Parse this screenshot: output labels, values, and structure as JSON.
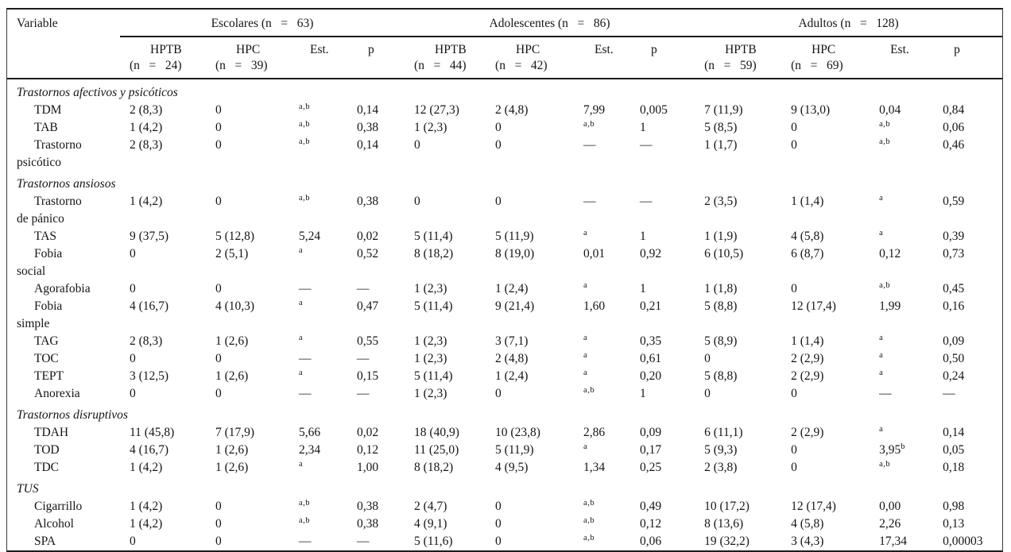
{
  "table": {
    "header": {
      "variable_label": "Variable",
      "groups": [
        {
          "label": "Escolares (n   =   63)",
          "sub": [
            {
              "name": "HPTB",
              "n": "(n   =   24)"
            },
            {
              "name": "HPC",
              "n": "(n   =   39)"
            },
            {
              "name": "Est."
            },
            {
              "name": "p"
            }
          ]
        },
        {
          "label": "Adolescentes (n   =   86)",
          "sub": [
            {
              "name": "HPTB",
              "n": "(n   =   44)"
            },
            {
              "name": "HPC",
              "n": "(n   =   42)"
            },
            {
              "name": "Est."
            },
            {
              "name": "p"
            }
          ]
        },
        {
          "label": "Adultos (n   =   128)",
          "sub": [
            {
              "name": "HPTB",
              "n": "(n   =   59)"
            },
            {
              "name": "HPC",
              "n": "(n   =   69)"
            },
            {
              "name": "Est."
            },
            {
              "name": "p"
            }
          ]
        }
      ]
    },
    "sections": [
      {
        "title": "Trastornos afectivos y psicóticos",
        "rows": [
          {
            "label": "TDM",
            "cells": [
              "2 (8,3)",
              "0",
              {
                "sup": "a,b"
              },
              "0,14",
              "12 (27,3)",
              "2 (4,8)",
              "7,99",
              "0,005",
              "7 (11,9)",
              "9 (13,0)",
              "0,04",
              "0,84"
            ]
          },
          {
            "label": "TAB",
            "cells": [
              "1 (4,2)",
              "0",
              {
                "sup": "a,b"
              },
              "0,38",
              "1 (2,3)",
              "0",
              {
                "sup": "a,b"
              },
              "1",
              "5 (8,5)",
              "0",
              {
                "sup": "a,b"
              },
              "0,06"
            ]
          },
          {
            "label": "Trastorno\npsicótico",
            "cells": [
              "2 (8,3)",
              "0",
              {
                "sup": "a,b"
              },
              "0,14",
              "0",
              "0",
              "—",
              "—",
              "1 (1,7)",
              "0",
              {
                "sup": "a,b"
              },
              "0,46"
            ]
          }
        ]
      },
      {
        "title": "Trastornos ansiosos",
        "rows": [
          {
            "label": "Trastorno\nde pánico",
            "cells": [
              "1 (4,2)",
              "0",
              {
                "sup": "a,b"
              },
              "0,38",
              "0",
              "0",
              "—",
              "—",
              "2 (3,5)",
              "1 (1,4)",
              {
                "sup": "a"
              },
              "0,59"
            ]
          },
          {
            "label": "TAS",
            "cells": [
              "9 (37,5)",
              "5 (12,8)",
              "5,24",
              "0,02",
              "5 (11,4)",
              "5 (11,9)",
              {
                "sup": "a"
              },
              "1",
              "1 (1,9)",
              "4 (5,8)",
              {
                "sup": "a"
              },
              "0,39"
            ]
          },
          {
            "label": "Fobia\nsocial",
            "cells": [
              "0",
              "2 (5,1)",
              {
                "sup": "a"
              },
              "0,52",
              "8 (18,2)",
              "8 (19,0)",
              "0,01",
              "0,92",
              "6 (10,5)",
              "6 (8,7)",
              "0,12",
              "0,73"
            ]
          },
          {
            "label": "Agorafobia",
            "cells": [
              "0",
              "0",
              "—",
              "—",
              "1 (2,3)",
              "1 (2,4)",
              {
                "sup": "a"
              },
              "1",
              "1 (1,8)",
              "0",
              {
                "sup": "a,b"
              },
              "0,45"
            ]
          },
          {
            "label": "Fobia\nsimple",
            "cells": [
              "4 (16,7)",
              "4 (10,3)",
              {
                "sup": "a"
              },
              "0,47",
              "5 (11,4)",
              "9 (21,4)",
              "1,60",
              "0,21",
              "5 (8,8)",
              "12 (17,4)",
              "1,99",
              "0,16"
            ]
          },
          {
            "label": "TAG",
            "cells": [
              "2 (8,3)",
              "1 (2,6)",
              {
                "sup": "a"
              },
              "0,55",
              "1 (2,3)",
              "3 (7,1)",
              {
                "sup": "a"
              },
              "0,35",
              "5 (8,9)",
              "1 (1,4)",
              {
                "sup": "a"
              },
              "0,09"
            ]
          },
          {
            "label": "TOC",
            "cells": [
              "0",
              "0",
              "—",
              "—",
              "1 (2,3)",
              "2 (4,8)",
              {
                "sup": "a"
              },
              "0,61",
              "0",
              "2 (2,9)",
              {
                "sup": "a"
              },
              "0,50"
            ]
          },
          {
            "label": "TEPT",
            "cells": [
              "3 (12,5)",
              "1 (2,6)",
              {
                "sup": "a"
              },
              "0,15",
              "5 (11,4)",
              "1 (2,4)",
              {
                "sup": "a"
              },
              "0,20",
              "5 (8,8)",
              "2 (2,9)",
              {
                "sup": "a"
              },
              "0,24"
            ]
          },
          {
            "label": "Anorexia",
            "cells": [
              "0",
              "0",
              "—",
              "—",
              "1 (2,3)",
              "0",
              {
                "sup": "a,b"
              },
              "1",
              "0",
              "0",
              "—",
              "—"
            ]
          }
        ]
      },
      {
        "title": "Trastornos disruptivos",
        "rows": [
          {
            "label": "TDAH",
            "cells": [
              "11 (45,8)",
              "7 (17,9)",
              "5,66",
              "0,02",
              "18 (40,9)",
              "10 (23,8)",
              "2,86",
              "0,09",
              "6 (11,1)",
              "2 (2,9)",
              {
                "sup": "a"
              },
              "0,14"
            ]
          },
          {
            "label": "TOD",
            "cells": [
              "4 (16,7)",
              "1 (2,6)",
              "2,34",
              "0,12",
              "11 (25,0)",
              "5 (11,9)",
              {
                "sup": "a"
              },
              "0,17",
              "5 (9,3)",
              "0",
              {
                "v": "3,95",
                "sup": "b"
              },
              "0,05"
            ]
          },
          {
            "label": "TDC",
            "cells": [
              "1 (4,2)",
              "1 (2,6)",
              {
                "sup": "a"
              },
              "1,00",
              "8 (18,2)",
              "4 (9,5)",
              "1,34",
              "0,25",
              "2 (3,8)",
              "0",
              {
                "sup": "a,b"
              },
              "0,18"
            ]
          }
        ]
      },
      {
        "title": "TUS",
        "rows": [
          {
            "label": "Cigarrillo",
            "cells": [
              "1 (4,2)",
              "0",
              {
                "sup": "a,b"
              },
              "0,38",
              "2 (4,7)",
              "0",
              {
                "sup": "a,b"
              },
              "0,49",
              "10 (17,2)",
              "12 (17,4)",
              "0,00",
              "0,98"
            ]
          },
          {
            "label": "Alcohol",
            "cells": [
              "1 (4,2)",
              "0",
              {
                "sup": "a,b"
              },
              "0,38",
              "4 (9,1)",
              "0",
              {
                "sup": "a,b"
              },
              "0,12",
              "8 (13,6)",
              "4 (5,8)",
              "2,26",
              "0,13"
            ]
          },
          {
            "label": "SPA",
            "cells": [
              "0",
              "0",
              "—",
              "—",
              "5 (11,6)",
              "0",
              {
                "sup": "a,b"
              },
              "0,06",
              "19 (32,2)",
              "3 (4,3)",
              "17,34",
              "0,00003"
            ]
          }
        ]
      }
    ]
  }
}
